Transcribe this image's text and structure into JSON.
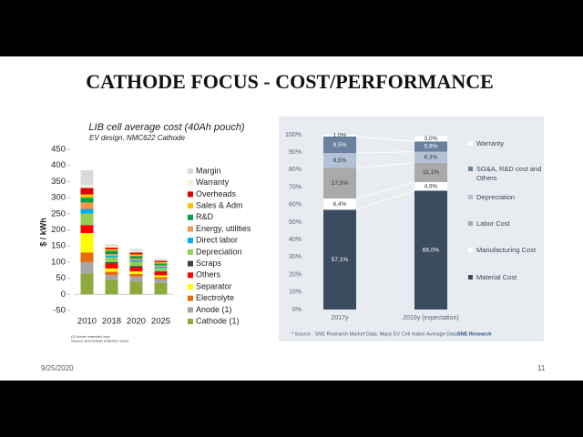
{
  "slide": {
    "title": "CATHODE FOCUS -  COST/PERFORMANCE",
    "date": "9/25/2020",
    "page": "11"
  },
  "chart_data": [
    {
      "type": "bar",
      "stacked": true,
      "title": "LIB cell average cost (40Ah pouch)",
      "subtitle": "EV design, NMC622 Cathode",
      "ylabel": "$ / kWh",
      "footnotes": [
        "(1) Active materials only",
        "Source: AVICENNE ENERGY 2019"
      ],
      "categories": [
        "2010",
        "2018",
        "2020",
        "2025"
      ],
      "ylim": [
        -50,
        450
      ],
      "yticks": [
        -50,
        0,
        50,
        100,
        150,
        200,
        250,
        300,
        350,
        400,
        450
      ],
      "grid": false,
      "series": [
        {
          "name": "Cathode (1)",
          "color": "#8eaa3c",
          "values": [
            65,
            45,
            40,
            35
          ]
        },
        {
          "name": "Anode (1)",
          "color": "#a6a6a6",
          "values": [
            35,
            15,
            15,
            12
          ]
        },
        {
          "name": "Electrolyte",
          "color": "#e46c0a",
          "values": [
            30,
            10,
            8,
            6
          ]
        },
        {
          "name": "Separator",
          "color": "#ffff00",
          "values": [
            60,
            10,
            8,
            6
          ]
        },
        {
          "name": "Others",
          "color": "#ff0000",
          "values": [
            25,
            15,
            12,
            10
          ]
        },
        {
          "name": "Scraps",
          "color": "#404040",
          "values": [
            0,
            5,
            5,
            3
          ]
        },
        {
          "name": "Depreciation",
          "color": "#92d050",
          "values": [
            35,
            15,
            13,
            10
          ]
        },
        {
          "name": "Direct labor",
          "color": "#00b0f0",
          "values": [
            15,
            5,
            5,
            4
          ]
        },
        {
          "name": "Energy, utilities",
          "color": "#f79646",
          "values": [
            20,
            5,
            5,
            4
          ]
        },
        {
          "name": "R&D",
          "color": "#00a050",
          "values": [
            15,
            10,
            8,
            6
          ]
        },
        {
          "name": "Sales & Adm",
          "color": "#ffc000",
          "values": [
            10,
            5,
            5,
            4
          ]
        },
        {
          "name": "Overheads",
          "color": "#e00000",
          "values": [
            20,
            5,
            6,
            4
          ]
        },
        {
          "name": "Warranty",
          "color": "#eef3d8",
          "values": [
            10,
            5,
            5,
            3
          ]
        },
        {
          "name": "Margin",
          "color": "#d9d9d9",
          "values": [
            45,
            5,
            5,
            3
          ]
        }
      ]
    },
    {
      "type": "bar",
      "stacked": true,
      "categories": [
        "2017y",
        "2019y (expectation)"
      ],
      "ylim": [
        0,
        100
      ],
      "yticks": [
        {
          "value": 0,
          "label": "0%"
        },
        {
          "value": 10,
          "label": "10%"
        },
        {
          "value": 20,
          "label": "20%"
        },
        {
          "value": 30,
          "label": "30%"
        },
        {
          "value": 40,
          "label": "40%"
        },
        {
          "value": 50,
          "label": "50%"
        },
        {
          "value": 60,
          "label": "60%"
        },
        {
          "value": 70,
          "label": "70%"
        },
        {
          "value": 80,
          "label": "80%"
        },
        {
          "value": 90,
          "label": "90%"
        },
        {
          "value": 100,
          "label": "100%"
        }
      ],
      "grid": false,
      "series": [
        {
          "name": "Material Cost",
          "color": "#3b4b60",
          "values": [
            57.1,
            68.0
          ],
          "value_labels": [
            "57,1%",
            "68,0%"
          ]
        },
        {
          "name": "Manufacturing Cost",
          "color": "#ffffff",
          "values": [
            6.4,
            4.9
          ],
          "value_labels": [
            "6,4%",
            "4,9%"
          ]
        },
        {
          "name": "Labor Cost",
          "color": "#a9a9a9",
          "values": [
            17.5,
            11.1
          ],
          "value_labels": [
            "17,5%",
            "11,1%"
          ]
        },
        {
          "name": "Depreciation",
          "color": "#b3c1d4",
          "values": [
            8.5,
            6.3
          ],
          "value_labels": [
            "8,5%",
            "6,3%"
          ]
        },
        {
          "name": "SG&A, R&D cost and Others",
          "color": "#6a819f",
          "values": [
            9.5,
            5.9
          ],
          "value_labels": [
            "9,5%",
            "5,9%"
          ]
        },
        {
          "name": "Warranty",
          "color": "#ffffff",
          "values": [
            1.0,
            3.0
          ],
          "value_labels": [
            "1,0%",
            "3,0%"
          ]
        }
      ],
      "source": "* Source : SNE Research Market Data, Major EV Cell maker Average Data",
      "logo": "SNE Research"
    }
  ]
}
